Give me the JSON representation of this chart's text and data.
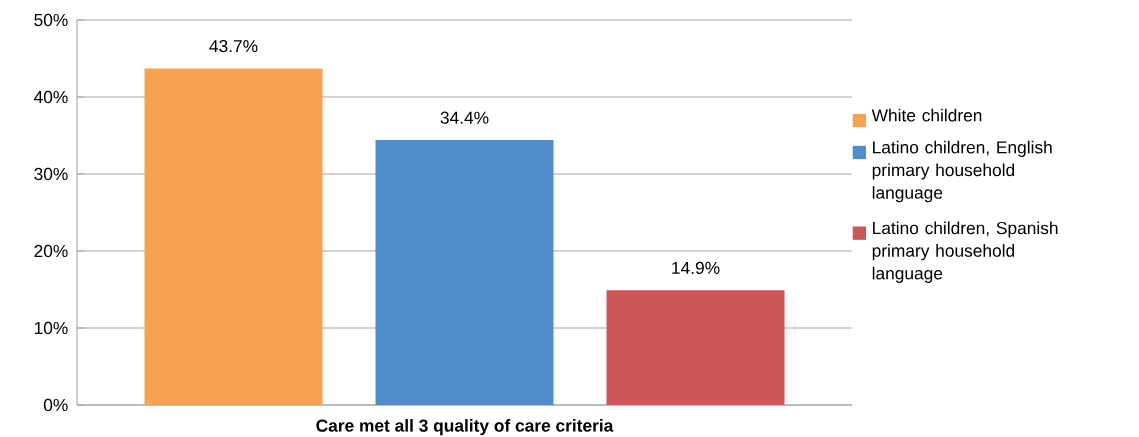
{
  "chart_data": {
    "type": "bar",
    "categories": [
      "Care met all 3 quality of care criteria"
    ],
    "series": [
      {
        "name": "White children",
        "color": "#f7a250",
        "values": [
          43.7
        ],
        "value_labels": [
          "43.7%"
        ]
      },
      {
        "name": "Latino children, English primary household language",
        "color": "#4f8dcb",
        "values": [
          34.4
        ],
        "value_labels": [
          "34.4%"
        ]
      },
      {
        "name": "Latino children, Spanish primary household language",
        "color": "#cd5658",
        "values": [
          14.9
        ],
        "value_labels": [
          "14.9%"
        ]
      }
    ],
    "ylim": [
      0,
      50
    ],
    "yticks": [
      {
        "value": 0,
        "label": "0%"
      },
      {
        "value": 10,
        "label": "10%"
      },
      {
        "value": 20,
        "label": "20%"
      },
      {
        "value": 30,
        "label": "30%"
      },
      {
        "value": 40,
        "label": "40%"
      },
      {
        "value": 50,
        "label": "50%"
      }
    ],
    "grid": "y",
    "legend": "right"
  }
}
